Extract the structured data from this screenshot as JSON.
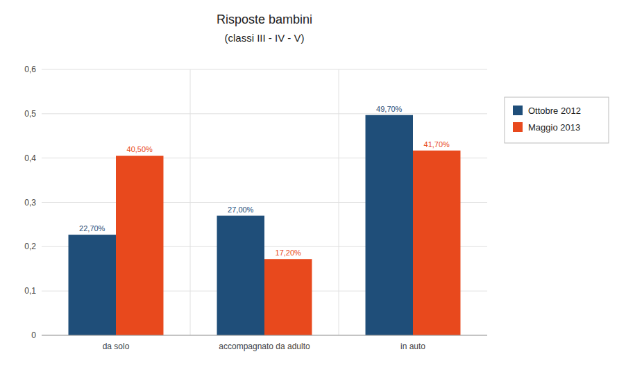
{
  "chart_data": {
    "type": "bar",
    "title": "Risposte bambini",
    "subtitle": "(classi III - IV - V)",
    "categories": [
      "da solo",
      "accompagnato da adulto",
      "in auto"
    ],
    "series": [
      {
        "name": "Ottobre 2012",
        "color": "#1F4E79",
        "values": [
          0.227,
          0.27,
          0.497
        ],
        "value_labels": [
          "22,70%",
          "27,00%",
          "49,70%"
        ]
      },
      {
        "name": "Maggio 2013",
        "color": "#E8491D",
        "values": [
          0.405,
          0.172,
          0.417
        ],
        "value_labels": [
          "40,50%",
          "17,20%",
          "41,70%"
        ]
      }
    ],
    "ylim": [
      0,
      0.6
    ],
    "yticks": [
      0,
      {
        "value": 0.1,
        "label": "0,1"
      },
      {
        "value": 0.2,
        "label": "0,2"
      },
      {
        "value": 0.3,
        "label": "0,3"
      },
      {
        "value": 0.4,
        "label": "0,4"
      },
      {
        "value": 0.5,
        "label": "0,5"
      },
      {
        "value": 0.6,
        "label": "0,6"
      }
    ],
    "grid": true,
    "legend": "right",
    "data_labels": true
  }
}
